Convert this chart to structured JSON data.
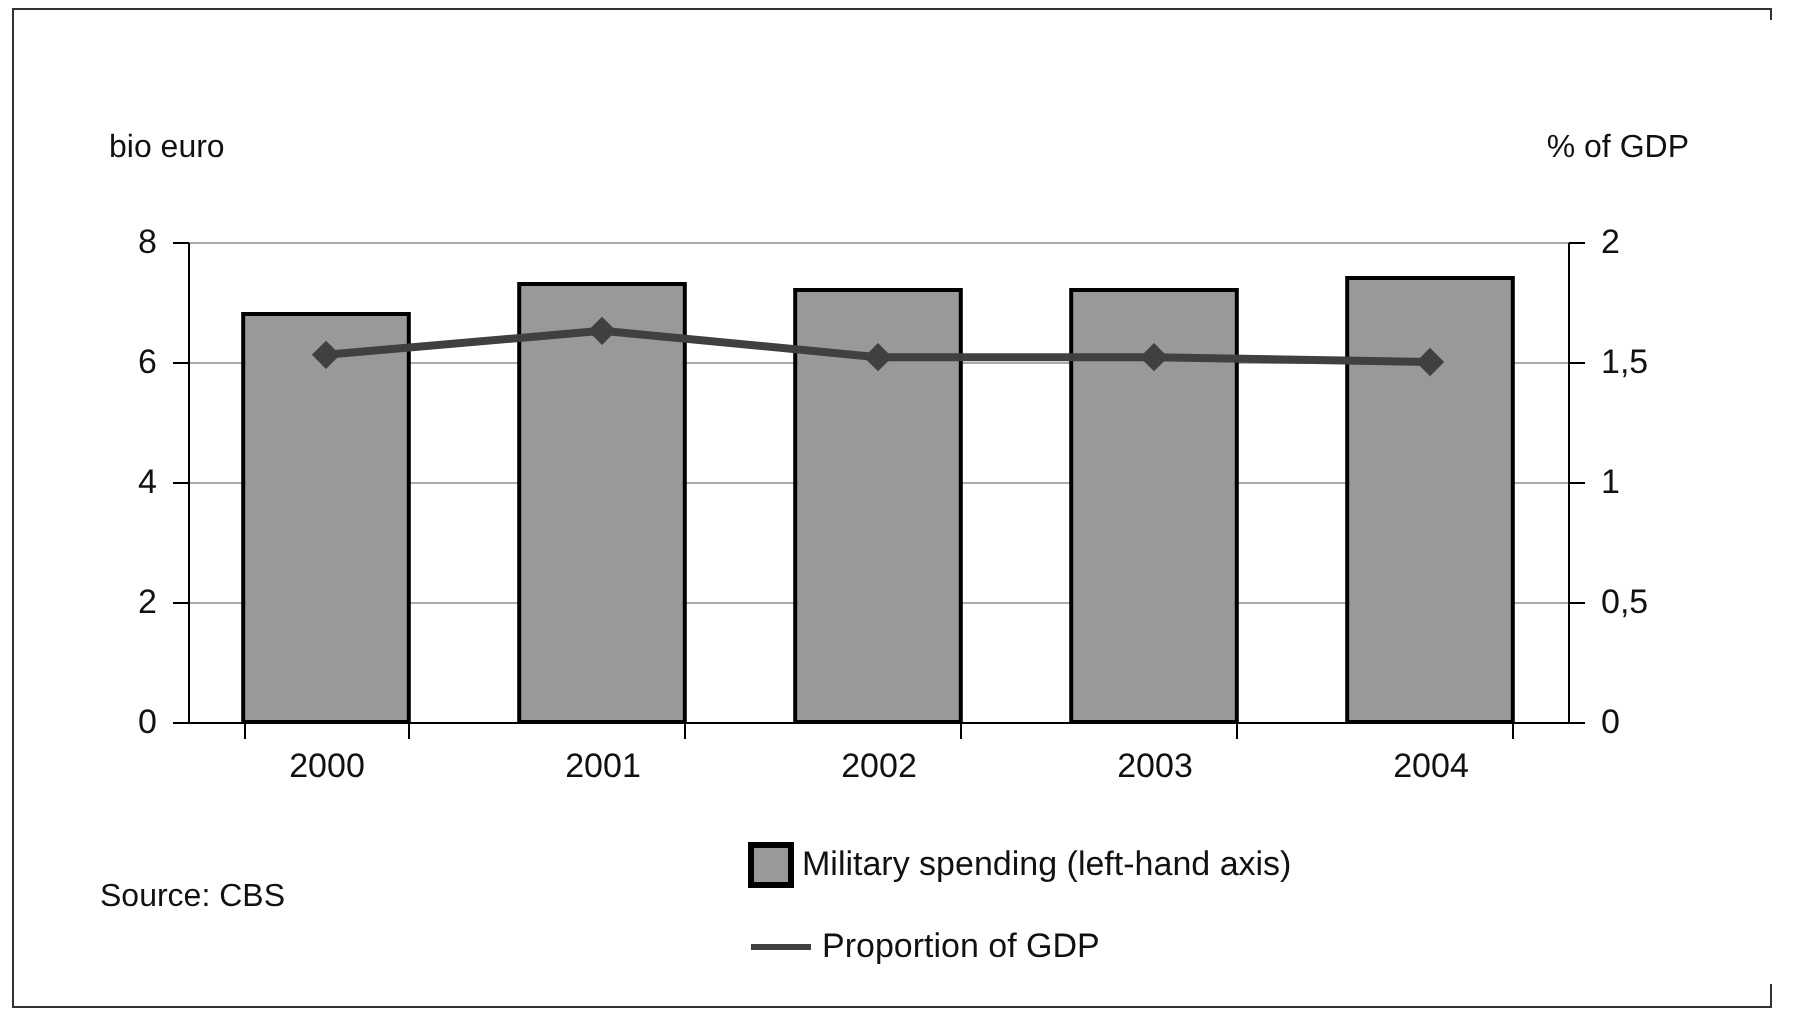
{
  "chart_data": {
    "type": "bar",
    "ylabel": "bio euro",
    "y2label": "% of GDP",
    "categories": [
      "2000",
      "2001",
      "2002",
      "2003",
      "2004"
    ],
    "series": [
      {
        "name": "Military spending (left-hand axis)",
        "color": "#999999",
        "values": [
          6.8,
          7.3,
          7.2,
          7.2,
          7.4
        ]
      },
      {
        "name": "Proportion of GDP",
        "type": "line",
        "axis": "y2",
        "color": "#404040",
        "values": [
          1.53,
          1.63,
          1.52,
          1.52,
          1.5
        ]
      }
    ],
    "ylim": [
      0,
      8
    ],
    "yticks": [
      0,
      2,
      4,
      6,
      8
    ],
    "y2lim": [
      0,
      2
    ],
    "y2ticks": [
      0,
      {
        "value": 0.5,
        "label": "0,5"
      },
      1,
      {
        "value": 1.5,
        "label": "1,5"
      },
      2
    ],
    "grid": "y",
    "legend": "bottom",
    "marker": "diamond",
    "line_style": "solid",
    "annotations": [
      "Source: CBS"
    ]
  }
}
